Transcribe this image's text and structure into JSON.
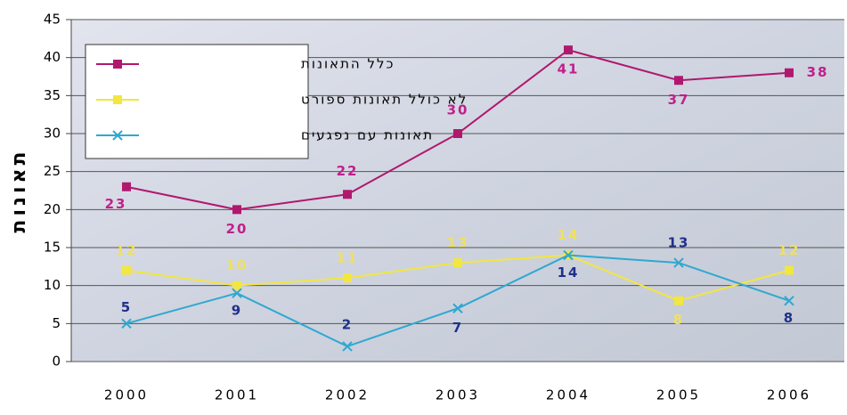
{
  "chart_data": {
    "type": "line",
    "ylabel": "תאונות",
    "categories": [
      "2000",
      "2001",
      "2002",
      "2003",
      "2004",
      "2005",
      "2006"
    ],
    "series": [
      {
        "name": "כלל התאונות",
        "color": "#b0186e",
        "marker": "square",
        "values": [
          23,
          20,
          22,
          30,
          41,
          37,
          38
        ]
      },
      {
        "name": "לא כולל תאונות ספורט",
        "color": "#f2e640",
        "marker": "square",
        "values": [
          12,
          10,
          11,
          13,
          14,
          8,
          12
        ]
      },
      {
        "name": "תאונות עם נפגעים",
        "color": "#2fa8d0",
        "marker": "x",
        "values": [
          5,
          9,
          2,
          7,
          14,
          13,
          8
        ]
      }
    ],
    "ylim": [
      0,
      45
    ],
    "yticks": [
      0,
      5,
      10,
      15,
      20,
      25,
      30,
      35,
      40,
      45
    ],
    "grid": true,
    "legend": "upper left"
  }
}
